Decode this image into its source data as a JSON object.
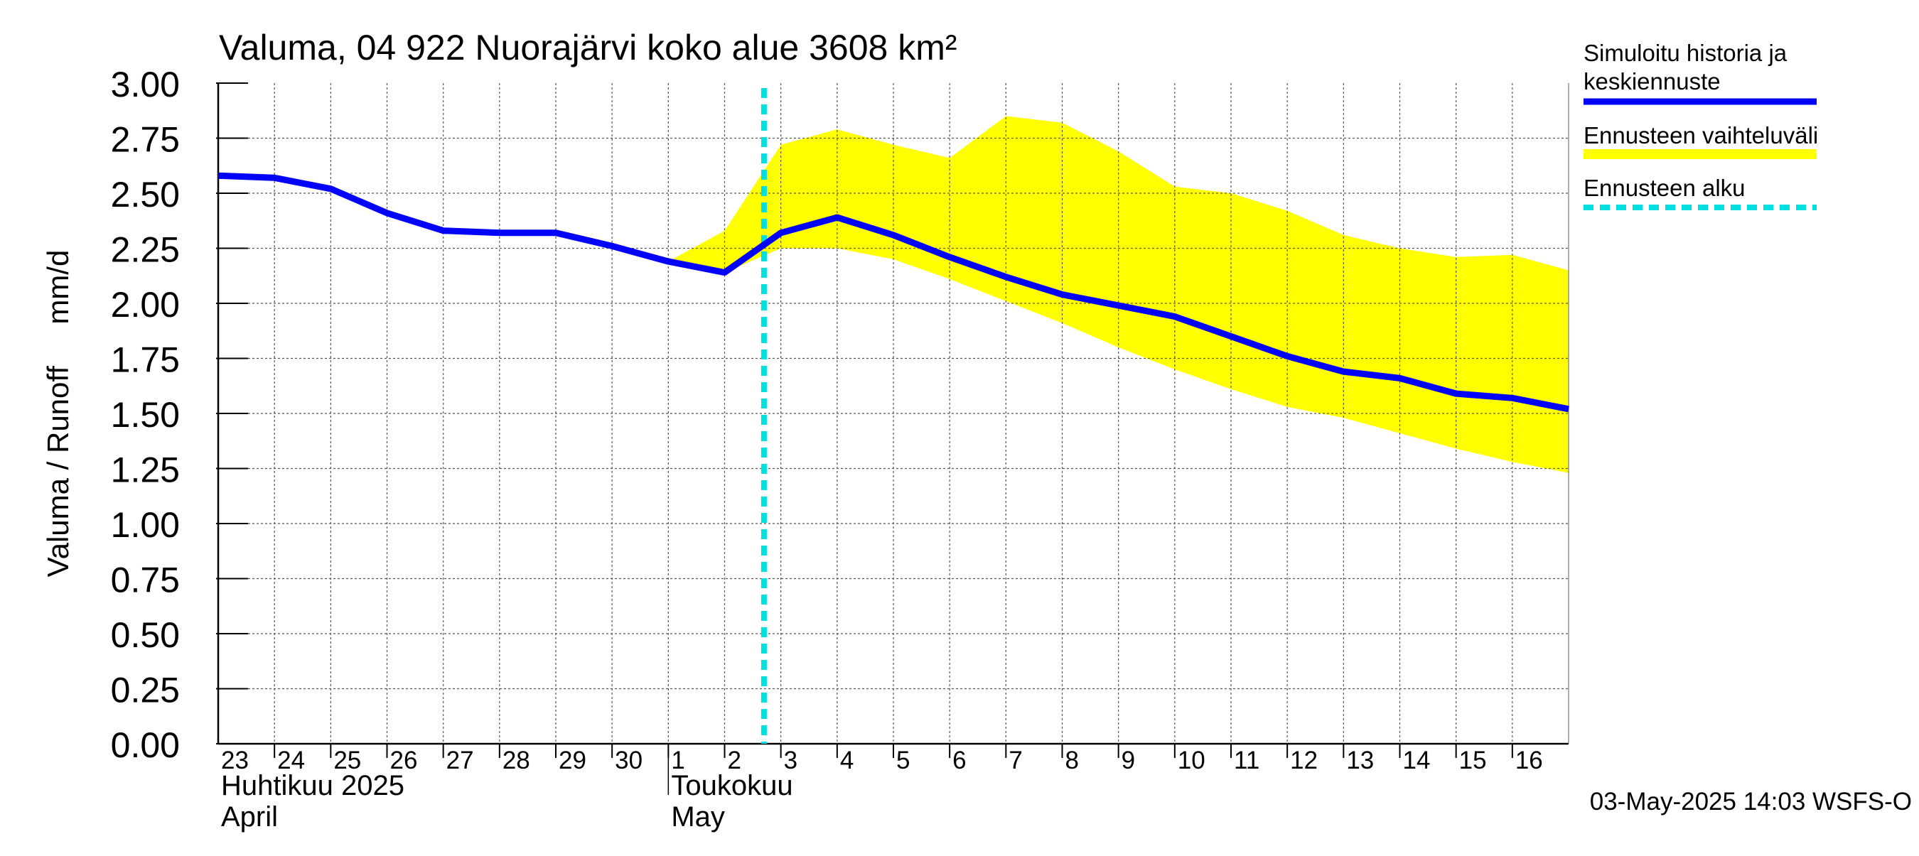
{
  "chart_data": {
    "type": "line",
    "title": "Valuma, 04 922 Nuorajärvi koko alue 3608 km²",
    "ylabel": "Valuma / Runoff     mm/d",
    "ylim": [
      0,
      3
    ],
    "yticks": [
      "0.00",
      "0.25",
      "0.50",
      "0.75",
      "1.00",
      "1.25",
      "1.50",
      "1.75",
      "2.00",
      "2.25",
      "2.50",
      "2.75",
      "3.00"
    ],
    "x_start": "2025-04-23",
    "x_end": "2025-05-16",
    "x_tick_labels": [
      "23",
      "24",
      "25",
      "26",
      "27",
      "28",
      "29",
      "30",
      "1",
      "2",
      "3",
      "4",
      "5",
      "6",
      "7",
      "8",
      "9",
      "10",
      "11",
      "12",
      "13",
      "14",
      "15",
      "16"
    ],
    "month_labels": [
      {
        "fi": "Huhtikuu  2025",
        "en": "April",
        "start": "2025-04-23"
      },
      {
        "fi": "Toukokuu",
        "en": "May",
        "start": "2025-05-01"
      }
    ],
    "grid": true,
    "legend_position": "right",
    "forecast_start": "2025-05-03",
    "series": [
      {
        "name": "Simuloitu historia ja keskiennuste",
        "color": "#0000ff",
        "x": [
          "2025-04-23",
          "2025-04-24",
          "2025-04-25",
          "2025-04-26",
          "2025-04-27",
          "2025-04-28",
          "2025-04-29",
          "2025-04-30",
          "2025-05-01",
          "2025-05-02",
          "2025-05-03",
          "2025-05-04",
          "2025-05-05",
          "2025-05-06",
          "2025-05-07",
          "2025-05-08",
          "2025-05-09",
          "2025-05-10",
          "2025-05-11",
          "2025-05-12",
          "2025-05-13",
          "2025-05-14",
          "2025-05-15",
          "2025-05-16",
          "2025-05-17"
        ],
        "y": [
          2.58,
          2.57,
          2.52,
          2.41,
          2.33,
          2.32,
          2.32,
          2.26,
          2.19,
          2.14,
          2.32,
          2.39,
          2.31,
          2.21,
          2.12,
          2.04,
          1.99,
          1.94,
          1.85,
          1.76,
          1.69,
          1.66,
          1.59,
          1.57,
          1.52
        ]
      }
    ],
    "band": {
      "name": "Ennusteen vaihteluväli",
      "color": "#ffff00",
      "x": [
        "2025-05-01",
        "2025-05-02",
        "2025-05-03",
        "2025-05-04",
        "2025-05-05",
        "2025-05-06",
        "2025-05-07",
        "2025-05-08",
        "2025-05-09",
        "2025-05-10",
        "2025-05-11",
        "2025-05-12",
        "2025-05-13",
        "2025-05-14",
        "2025-05-15",
        "2025-05-16",
        "2025-05-17"
      ],
      "upper": [
        2.19,
        2.33,
        2.72,
        2.79,
        2.72,
        2.66,
        2.85,
        2.82,
        2.69,
        2.53,
        2.5,
        2.42,
        2.31,
        2.25,
        2.21,
        2.22,
        2.15
      ],
      "lower": [
        2.19,
        2.14,
        2.25,
        2.25,
        2.2,
        2.11,
        2.01,
        1.91,
        1.8,
        1.7,
        1.61,
        1.53,
        1.48,
        1.41,
        1.34,
        1.28,
        1.23
      ]
    },
    "legend": [
      {
        "label": "Simuloitu historia ja keskiennuste",
        "color": "#0000ff",
        "style": "solid"
      },
      {
        "label": "Ennusteen vaihteluväli",
        "color": "#ffff00",
        "style": "solid"
      },
      {
        "label": "Ennusteen alku",
        "color": "#00e0e0",
        "style": "dashed"
      }
    ]
  },
  "footer": {
    "timestamp": "03-May-2025 14:03 WSFS-O"
  }
}
